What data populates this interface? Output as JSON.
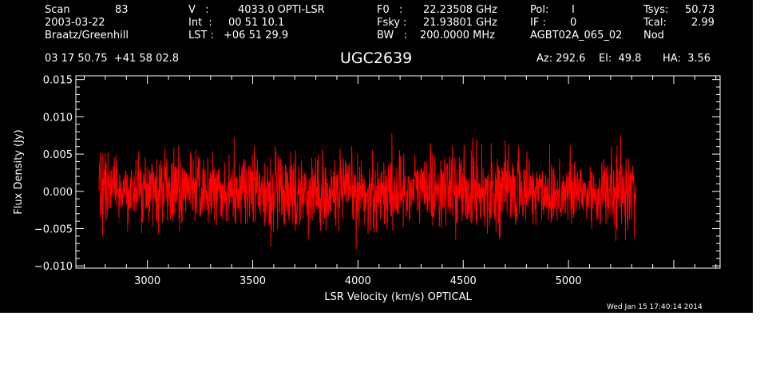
{
  "header": {
    "scan_label": "Scan",
    "scan_value": "83",
    "date": "2003-03-22",
    "observer": "Braatz/Greenhill",
    "v_label": "V   :",
    "v_value": "4033.0 OPTI-LSR",
    "int_label": "Int  :",
    "int_value": "00 51 10.1",
    "lst_label": "LST :",
    "lst_value": "+06 51 29.9",
    "f0_label": "F0   :",
    "f0_value": "22.23508 GHz",
    "fsky_label": "Fsky :",
    "fsky_value": "21.93801 GHz",
    "bw_label": "BW   :",
    "bw_value": "200.0000 MHz",
    "pol_label": "Pol:",
    "pol_value": "I",
    "if_label": "IF :",
    "if_value": "0",
    "project": "AGBT02A_065_02",
    "tsys_label": "Tsys:",
    "tsys_value": "50.73",
    "tcal_label": "Tcal:",
    "tcal_value": "2.99",
    "mode": "Nod",
    "coords": "03 17 50.75  +41 58 02.8",
    "source": "UGC2639",
    "az": "Az: 292.6",
    "el": "El:  49.8",
    "ha": "HA:  3.56",
    "timestamp": "Wed Jan 15 17:40:14 2014"
  },
  "chart_data": {
    "type": "line",
    "title": "UGC2639",
    "xlabel": "LSR Velocity (km/s) OPTICAL",
    "ylabel": "Flux Density (Jy)",
    "xlim": [
      2660,
      5720
    ],
    "ylim": [
      -0.0103,
      0.0155
    ],
    "x_ticks": [
      3000,
      3500,
      4000,
      4500,
      5000
    ],
    "x_tick_labels": [
      "3000",
      "3500",
      "4000",
      "4500",
      "5000"
    ],
    "y_ticks": [
      -0.01,
      -0.005,
      0.0,
      0.005,
      0.01,
      0.015
    ],
    "y_tick_labels": [
      "−0.010",
      "−0.005",
      "0.000",
      "0.005",
      "0.010",
      "0.015"
    ],
    "colors": {
      "series": "#ff0000",
      "axes": "#ffffff",
      "background": "#000000"
    },
    "grid": false,
    "series": [
      {
        "x_start": 2770,
        "x_end": 5320,
        "noise_rms": 0.0025,
        "x": [
          2770,
          2800,
          2850,
          2900,
          3000,
          3150,
          3300,
          3500,
          3700,
          3900,
          4100,
          4300,
          4500,
          4700,
          4900,
          5100,
          5250,
          5300,
          5320
        ],
        "y": [
          0.0005,
          0.0008,
          0.0006,
          0.0002,
          0.0,
          0.0005,
          0.0,
          -0.0002,
          0.0,
          -0.0003,
          -0.0002,
          0.0003,
          0.0,
          0.0003,
          0.0,
          -0.0003,
          0.0,
          0.0002,
          -0.0005
        ]
      }
    ]
  }
}
